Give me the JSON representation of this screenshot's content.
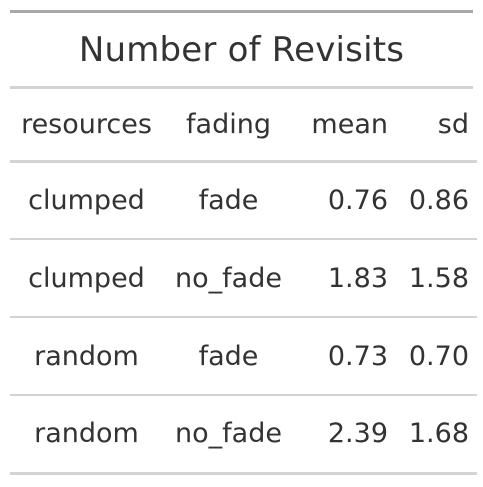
{
  "table": {
    "title": "Number of Revisits",
    "columns": [
      "resources",
      "fading",
      "mean",
      "sd"
    ],
    "rows": [
      [
        "clumped",
        "fade",
        "0.76",
        "0.86"
      ],
      [
        "clumped",
        "no_fade",
        "1.83",
        "1.58"
      ],
      [
        "random",
        "fade",
        "0.73",
        "0.70"
      ],
      [
        "random",
        "no_fade",
        "2.39",
        "1.68"
      ]
    ]
  },
  "colors": {
    "text": "#333333",
    "top_rule": "#a8a8a8",
    "rule": "#d3d3d3"
  }
}
